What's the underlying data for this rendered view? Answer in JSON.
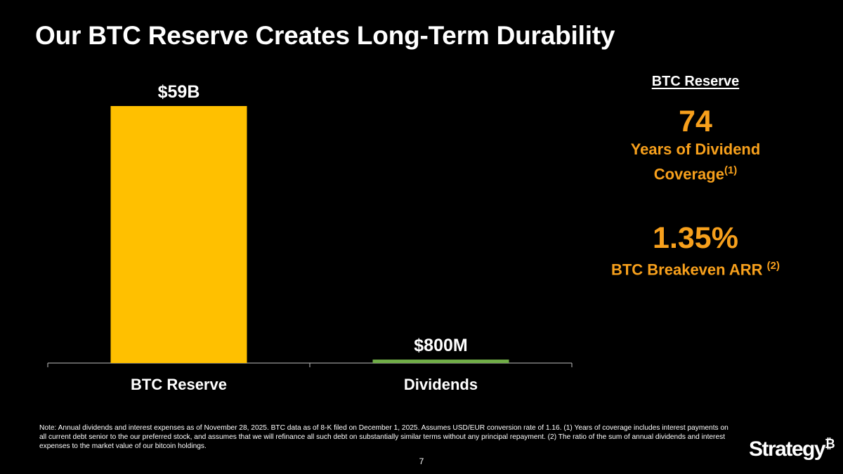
{
  "title": "Our BTC Reserve Creates Long-Term Durability",
  "chart_data": {
    "type": "bar",
    "categories": [
      "BTC Reserve",
      "Dividends"
    ],
    "values": [
      59,
      0.8
    ],
    "value_labels": [
      "$59B",
      "$800M"
    ],
    "unit": "$B",
    "bar_colors": [
      "#ffc000",
      "#70ad47"
    ],
    "ylim": [
      0,
      60
    ],
    "xlabel": "",
    "ylabel": ""
  },
  "stats": {
    "heading": "BTC Reserve",
    "coverage": {
      "value": "74",
      "desc_line1": "Years of Dividend",
      "desc_line2": "Coverage",
      "sup": "(1)"
    },
    "breakeven": {
      "value": "1.35%",
      "desc": "BTC Breakeven ARR ",
      "sup": "(2)"
    }
  },
  "footnote": "Note: Annual dividends and interest expenses as of November 28, 2025. BTC data as of 8-K filed on December 1, 2025. Assumes USD/EUR conversion rate of 1.16. (1) Years of coverage includes interest payments on all current debt senior to the our preferred stock, and assumes that we will refinance all such debt on substantially similar terms without any principal repayment. (2) The ratio of the sum of annual dividends and interest expenses to the market value of our bitcoin holdings.",
  "page_number": "7",
  "logo": {
    "text": "Strategy",
    "mark": "₿"
  },
  "colors": {
    "accent": "#f7a01c",
    "background": "#000000"
  }
}
